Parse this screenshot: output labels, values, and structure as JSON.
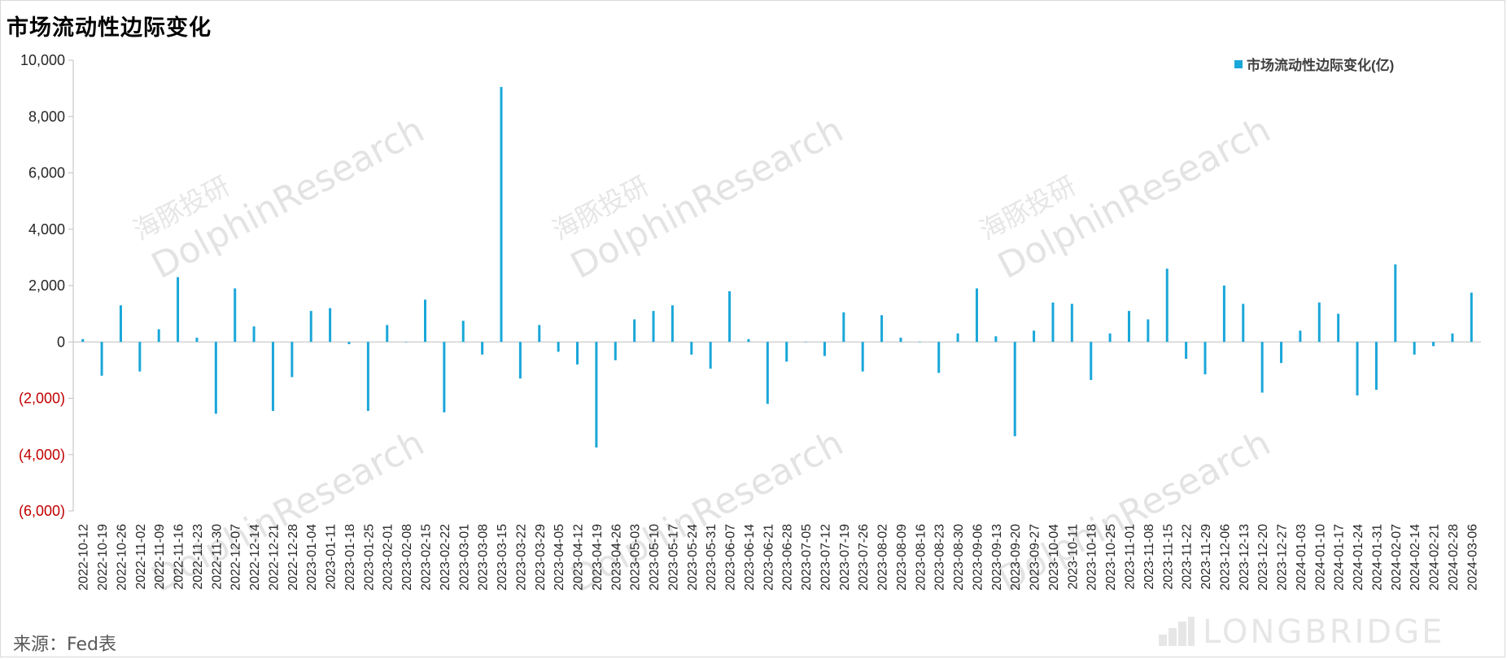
{
  "title": "市场流动性边际变化",
  "source": "来源：Fed表",
  "watermarks": {
    "brand_en": "DolphinResearch",
    "brand_cn": "海豚投研",
    "footer": "LONGBRIDGE"
  },
  "colors": {
    "bar": "#1aa7d9",
    "negative_tick": "#c00000",
    "axis": "#bfbfbf",
    "text": "#595959"
  },
  "chart_data": {
    "type": "bar",
    "title": "市场流动性边际变化",
    "legend": {
      "position": "top-right",
      "entries": [
        "市场流动性边际变化(亿)"
      ]
    },
    "ylim": [
      -6000,
      10000
    ],
    "yticks": [
      10000,
      8000,
      6000,
      4000,
      2000,
      0,
      -2000,
      -4000,
      -6000
    ],
    "ytick_labels": [
      "10,000",
      "8,000",
      "6,000",
      "4,000",
      "2,000",
      "0",
      "(2,000)",
      "(4,000)",
      "(6,000)"
    ],
    "grid": false,
    "x_tick_labels": [
      "2022-10-12",
      "2022-10-19",
      "2022-10-26",
      "2022-11-02",
      "2022-11-09",
      "2022-11-16",
      "2022-11-23",
      "2022-11-30",
      "2022-12-07",
      "2022-12-14",
      "2022-12-21",
      "2022-12-28",
      "2023-01-04",
      "2023-01-11",
      "2023-01-18",
      "2023-01-25",
      "2023-02-01",
      "2023-02-08",
      "2023-02-15",
      "2023-02-22",
      "2023-03-01",
      "2023-03-08",
      "2023-03-15",
      "2023-03-22",
      "2023-03-29",
      "2023-04-05",
      "2023-04-12",
      "2023-04-19",
      "2023-04-26",
      "2023-05-03",
      "2023-05-10",
      "2023-05-17",
      "2023-05-24",
      "2023-05-31",
      "2023-06-07",
      "2023-06-14",
      "2023-06-21",
      "2023-06-28",
      "2023-07-05",
      "2023-07-12",
      "2023-07-19",
      "2023-07-26",
      "2023-08-02",
      "2023-08-09",
      "2023-08-16",
      "2023-08-23",
      "2023-08-30",
      "2023-09-06",
      "2023-09-13",
      "2023-09-20",
      "2023-09-27",
      "2023-10-04",
      "2023-10-11",
      "2023-10-18",
      "2023-10-25",
      "2023-11-01",
      "2023-11-08",
      "2023-11-15",
      "2023-11-22",
      "2023-11-29",
      "2023-12-06",
      "2023-12-13",
      "2023-12-20",
      "2023-12-27",
      "2024-01-03",
      "2024-01-10",
      "2024-01-17",
      "2024-01-24",
      "2024-01-31",
      "2024-02-07",
      "2024-02-14",
      "2024-02-21",
      "2024-02-28",
      "2024-03-06"
    ],
    "series": [
      {
        "name": "市场流动性边际变化(亿)",
        "color": "#1aa7d9",
        "values": [
          100,
          -1200,
          1300,
          -1050,
          450,
          2300,
          150,
          -2550,
          1900,
          550,
          -2450,
          -1250,
          1100,
          1200,
          -80,
          -2450,
          600,
          0,
          1500,
          -2500,
          750,
          -450,
          9050,
          -1300,
          600,
          -350,
          -800,
          -3750,
          -650,
          800,
          1100,
          1300,
          -450,
          -950,
          1800,
          100,
          -2200,
          -700,
          0,
          -500,
          1050,
          -1050,
          950,
          150,
          0,
          -1100,
          300,
          1900,
          200,
          -3350,
          400,
          1400,
          1350,
          -1350,
          300,
          1100,
          800,
          2600,
          -600,
          -1150,
          2000,
          1350,
          -1800,
          -750,
          400,
          1400,
          1000,
          -1900,
          -1700,
          2750,
          -450,
          -150,
          300,
          1750
        ]
      }
    ]
  }
}
